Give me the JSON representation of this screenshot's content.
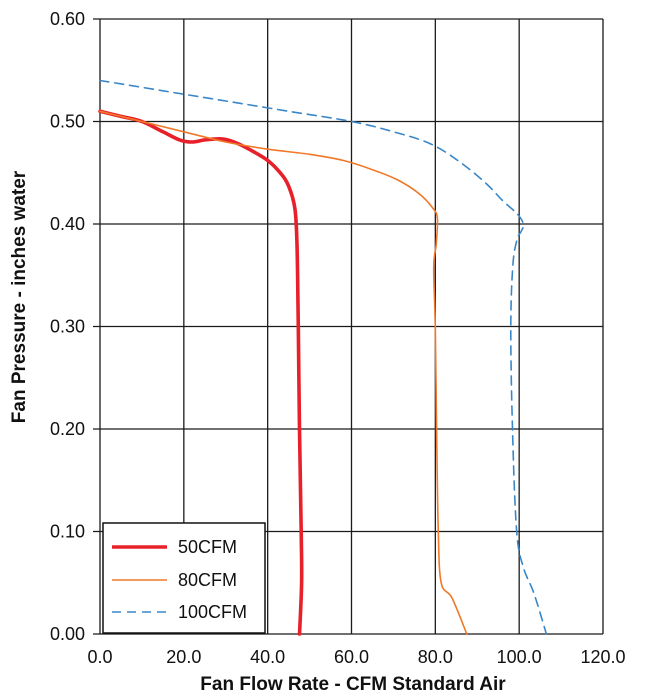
{
  "chart_data": {
    "type": "line",
    "title": "",
    "xlabel": "Fan Flow Rate - CFM Standard Air",
    "ylabel": "Fan Pressure - inches water",
    "xlim": [
      0,
      120
    ],
    "ylim": [
      0,
      0.6
    ],
    "x_ticks": [
      "0.0",
      "20.0",
      "40.0",
      "60.0",
      "80.0",
      "100.0",
      "120.0"
    ],
    "y_ticks": [
      "0.00",
      "0.10",
      "0.20",
      "0.30",
      "0.40",
      "0.50",
      "0.60"
    ],
    "grid": true,
    "legend_position": "bottom-left",
    "series": [
      {
        "name": "50CFM",
        "color": "#e8202a",
        "style": "solid-thick",
        "points": [
          [
            0,
            0.51
          ],
          [
            5,
            0.505
          ],
          [
            10,
            0.5
          ],
          [
            15,
            0.49
          ],
          [
            19,
            0.482
          ],
          [
            22,
            0.48
          ],
          [
            25,
            0.482
          ],
          [
            29,
            0.483
          ],
          [
            32,
            0.48
          ],
          [
            36,
            0.472
          ],
          [
            40,
            0.462
          ],
          [
            43,
            0.45
          ],
          [
            45,
            0.437
          ],
          [
            46.5,
            0.415
          ],
          [
            47,
            0.38
          ],
          [
            47.3,
            0.3
          ],
          [
            47.6,
            0.2
          ],
          [
            48,
            0.1
          ],
          [
            48.1,
            0.05
          ],
          [
            47.6,
            0.0
          ]
        ]
      },
      {
        "name": "80CFM",
        "color": "#f07828",
        "style": "solid-thin",
        "points": [
          [
            0,
            0.51
          ],
          [
            10,
            0.5
          ],
          [
            20,
            0.49
          ],
          [
            30,
            0.48
          ],
          [
            40,
            0.473
          ],
          [
            50,
            0.468
          ],
          [
            58,
            0.462
          ],
          [
            65,
            0.453
          ],
          [
            71,
            0.443
          ],
          [
            76,
            0.43
          ],
          [
            79.5,
            0.415
          ],
          [
            80.5,
            0.405
          ],
          [
            80.2,
            0.38
          ],
          [
            79.6,
            0.358
          ],
          [
            80,
            0.3
          ],
          [
            80.3,
            0.2
          ],
          [
            80.7,
            0.1
          ],
          [
            81.4,
            0.05
          ],
          [
            84,
            0.035
          ],
          [
            87.5,
            0.0
          ]
        ]
      },
      {
        "name": "100CFM",
        "color": "#3a87c8",
        "style": "dashed",
        "points": [
          [
            0,
            0.54
          ],
          [
            15,
            0.53
          ],
          [
            30,
            0.52
          ],
          [
            45,
            0.51
          ],
          [
            60,
            0.5
          ],
          [
            70,
            0.49
          ],
          [
            79,
            0.478
          ],
          [
            86,
            0.46
          ],
          [
            92,
            0.44
          ],
          [
            96,
            0.423
          ],
          [
            99.5,
            0.41
          ],
          [
            101,
            0.4
          ],
          [
            100.5,
            0.393
          ],
          [
            99.5,
            0.385
          ],
          [
            98.5,
            0.36
          ],
          [
            98,
            0.3
          ],
          [
            98.4,
            0.2
          ],
          [
            99.4,
            0.1
          ],
          [
            101,
            0.065
          ],
          [
            103.5,
            0.04
          ],
          [
            106.5,
            0.0
          ]
        ]
      }
    ]
  }
}
